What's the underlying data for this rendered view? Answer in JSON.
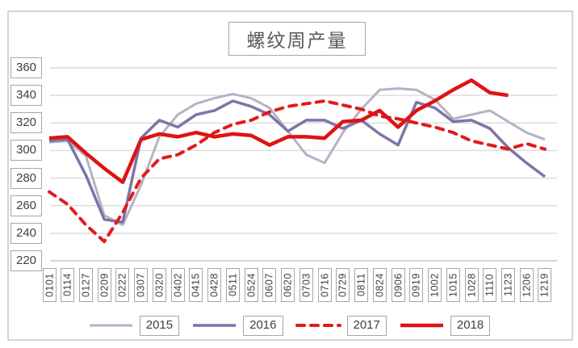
{
  "title": "螺纹周产量",
  "chart_data": {
    "type": "line",
    "title": "螺纹周产量",
    "categories": [
      "0101",
      "0114",
      "0127",
      "0209",
      "0222",
      "0307",
      "0320",
      "0402",
      "0415",
      "0428",
      "0511",
      "0524",
      "0607",
      "0620",
      "0703",
      "0716",
      "0729",
      "0811",
      "0824",
      "0906",
      "0919",
      "1002",
      "1015",
      "1028",
      "1110",
      "1123",
      "1206",
      "1219"
    ],
    "series": [
      {
        "name": "2015",
        "color": "#b7b1c7",
        "style": "solid",
        "stroke_width": 3,
        "values": [
          306,
          307,
          296,
          253,
          246,
          275,
          310,
          326,
          334,
          338,
          341,
          338,
          331,
          314,
          297,
          291,
          313,
          330,
          344,
          345,
          344,
          337,
          323,
          326,
          329,
          321,
          313,
          308
        ]
      },
      {
        "name": "2016",
        "color": "#7d75a7",
        "style": "solid",
        "stroke_width": 3.5,
        "values": [
          307,
          308,
          282,
          250,
          248,
          309,
          322,
          317,
          326,
          329,
          336,
          332,
          326,
          314,
          322,
          322,
          316,
          322,
          312,
          304,
          335,
          331,
          321,
          322,
          316,
          302,
          291,
          281
        ]
      },
      {
        "name": "2017",
        "color": "#e11b1b",
        "style": "dashed",
        "stroke_width": 4,
        "values": [
          270,
          261,
          246,
          234,
          255,
          280,
          294,
          297,
          304,
          313,
          319,
          322,
          328,
          332,
          334,
          336,
          333,
          330,
          325,
          323,
          320,
          317,
          313,
          307,
          304,
          301,
          305,
          301
        ]
      },
      {
        "name": "2018",
        "color": "#e01212",
        "style": "solid",
        "stroke_width": 4.5,
        "values": [
          309,
          310,
          298,
          287,
          277,
          308,
          312,
          310,
          313,
          310,
          312,
          311,
          304,
          310,
          310,
          309,
          321,
          322,
          329,
          317,
          329,
          336,
          344,
          351,
          342,
          340
        ]
      }
    ],
    "ylim": [
      220,
      360
    ],
    "yticks": [
      360,
      340,
      320,
      300,
      280,
      260,
      240,
      220
    ],
    "xlabel": "",
    "ylabel": "",
    "grid": true,
    "legend_position": "bottom",
    "legend_entries": [
      "2015",
      "2016",
      "2017",
      "2018"
    ]
  },
  "style": {
    "grid_color": "#dadada",
    "axis_color": "#c6c6c6",
    "label_border_color": "#a6a6a6",
    "label_text_color": "#3f3f3f",
    "title_color": "#595959",
    "frame_color": "#d4d4d4"
  }
}
